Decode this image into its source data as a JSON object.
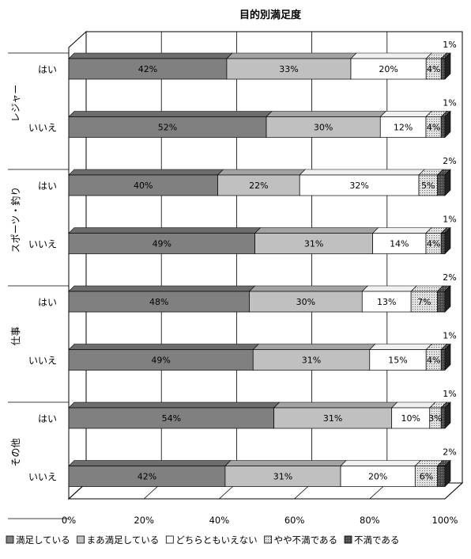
{
  "chart_data": {
    "type": "bar",
    "orientation": "horizontal",
    "stacked": "percent",
    "three_d": true,
    "title": "目的別満足度",
    "groups": [
      {
        "label": "レジャー",
        "rows": [
          {
            "label": "はい",
            "values": [
              42,
              33,
              20,
              4,
              1
            ]
          },
          {
            "label": "いいえ",
            "values": [
              52,
              30,
              12,
              4,
              1
            ]
          }
        ]
      },
      {
        "label": "スポーツ・釣り",
        "rows": [
          {
            "label": "はい",
            "values": [
              40,
              22,
              32,
              5,
              2
            ]
          },
          {
            "label": "いいえ",
            "values": [
              49,
              31,
              14,
              4,
              1
            ]
          }
        ]
      },
      {
        "label": "仕事",
        "rows": [
          {
            "label": "はい",
            "values": [
              48,
              30,
              13,
              7,
              2
            ]
          },
          {
            "label": "いいえ",
            "values": [
              49,
              31,
              15,
              4,
              1
            ]
          }
        ]
      },
      {
        "label": "その他",
        "rows": [
          {
            "label": "はい",
            "values": [
              54,
              31,
              10,
              3,
              1
            ]
          },
          {
            "label": "いいえ",
            "values": [
              42,
              31,
              20,
              6,
              2
            ]
          }
        ]
      }
    ],
    "series": [
      {
        "name": "満足している",
        "color": "#808080"
      },
      {
        "name": "まあ満足している",
        "color": "#c0c0c0"
      },
      {
        "name": "どちらともいえない",
        "color": "#ffffff"
      },
      {
        "name": "やや不満である",
        "color": "#d4d4d4",
        "pattern": "dots"
      },
      {
        "name": "不満である",
        "color": "#404040",
        "pattern": "dots"
      }
    ],
    "x_ticks": [
      "0%",
      "20%",
      "40%",
      "60%",
      "80%",
      "100%"
    ],
    "xlim": [
      0,
      100
    ],
    "grid": true,
    "legend_position": "bottom"
  }
}
